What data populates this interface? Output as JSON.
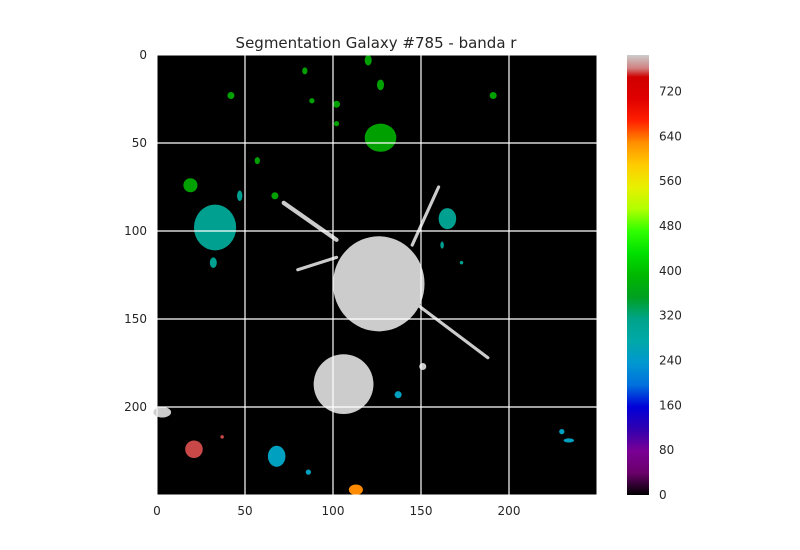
{
  "chart_data": {
    "type": "heatmap",
    "title": "Segmentation Galaxy #785 - banda r",
    "xlabel": "",
    "ylabel": "",
    "image_size": [
      250,
      250
    ],
    "xlim": [
      0,
      250
    ],
    "ylim": [
      250,
      0
    ],
    "xticks": [
      0,
      50,
      100,
      150,
      200
    ],
    "yticks": [
      0,
      50,
      100,
      150,
      200
    ],
    "grid": true,
    "colormap": "nipy_spectral",
    "colorbar": {
      "range": [
        0,
        785
      ],
      "ticks": [
        0,
        80,
        160,
        240,
        320,
        400,
        480,
        560,
        640,
        720
      ]
    },
    "background": "#000000",
    "grid_color": "#ffffff",
    "segments": [
      {
        "label": "central-galaxy",
        "cx": 126,
        "cy": 130,
        "rx": 26,
        "ry": 27,
        "color": "#cccccc"
      },
      {
        "label": "central-galaxy-lower",
        "cx": 106,
        "cy": 187,
        "rx": 17,
        "ry": 17,
        "color": "#cccccc"
      },
      {
        "label": "left-edge-object",
        "cx": 3,
        "cy": 203,
        "rx": 5,
        "ry": 3,
        "color": "#cccccc"
      },
      {
        "label": "object-top-green",
        "cx": 127,
        "cy": 47,
        "rx": 9,
        "ry": 8,
        "color": "#00a000"
      },
      {
        "label": "object-teal-left",
        "cx": 33,
        "cy": 98,
        "rx": 12,
        "ry": 13,
        "color": "#00a090"
      },
      {
        "label": "object-teal-right",
        "cx": 165,
        "cy": 93,
        "rx": 5,
        "ry": 6,
        "color": "#00a090"
      },
      {
        "label": "object-red",
        "cx": 21,
        "cy": 224,
        "rx": 5,
        "ry": 5,
        "color": "#c84848"
      },
      {
        "label": "object-cyan",
        "cx": 68,
        "cy": 228,
        "rx": 5,
        "ry": 6,
        "color": "#00a0c0"
      },
      {
        "label": "object-orange",
        "cx": 113,
        "cy": 247,
        "rx": 4,
        "ry": 3,
        "color": "#ff8c00"
      },
      {
        "label": "object-small-1",
        "cx": 120,
        "cy": 3,
        "rx": 2,
        "ry": 3,
        "color": "#00a000"
      },
      {
        "label": "object-small-2",
        "cx": 84,
        "cy": 9,
        "rx": 1.5,
        "ry": 2,
        "color": "#00a000"
      },
      {
        "label": "object-small-3",
        "cx": 127,
        "cy": 17,
        "rx": 2,
        "ry": 3,
        "color": "#00a000"
      },
      {
        "label": "object-small-4",
        "cx": 42,
        "cy": 23,
        "rx": 2,
        "ry": 2,
        "color": "#00a000"
      },
      {
        "label": "object-small-5",
        "cx": 88,
        "cy": 26,
        "rx": 1.5,
        "ry": 1.5,
        "color": "#00a000"
      },
      {
        "label": "object-small-6",
        "cx": 102,
        "cy": 28,
        "rx": 2,
        "ry": 2,
        "color": "#00a000"
      },
      {
        "label": "object-small-7",
        "cx": 102,
        "cy": 39,
        "rx": 1.5,
        "ry": 1.5,
        "color": "#00a000"
      },
      {
        "label": "object-small-8",
        "cx": 191,
        "cy": 23,
        "rx": 2,
        "ry": 2,
        "color": "#00a000"
      },
      {
        "label": "object-small-9",
        "cx": 57,
        "cy": 60,
        "rx": 1.5,
        "ry": 2,
        "color": "#00a000"
      },
      {
        "label": "object-small-10",
        "cx": 19,
        "cy": 74,
        "rx": 4,
        "ry": 4,
        "color": "#00a000"
      },
      {
        "label": "object-small-11",
        "cx": 67,
        "cy": 80,
        "rx": 2,
        "ry": 2,
        "color": "#00a000"
      },
      {
        "label": "object-small-12",
        "cx": 47,
        "cy": 80,
        "rx": 1.5,
        "ry": 3,
        "color": "#00a090"
      },
      {
        "label": "object-small-13",
        "cx": 32,
        "cy": 118,
        "rx": 2,
        "ry": 3,
        "color": "#00a090"
      },
      {
        "label": "object-small-14",
        "cx": 162,
        "cy": 108,
        "rx": 1,
        "ry": 2,
        "color": "#00a090"
      },
      {
        "label": "object-small-15",
        "cx": 173,
        "cy": 118,
        "rx": 1,
        "ry": 1,
        "color": "#00a090"
      },
      {
        "label": "object-small-16",
        "cx": 137,
        "cy": 193,
        "rx": 2,
        "ry": 2,
        "color": "#00a0c0"
      },
      {
        "label": "object-small-17",
        "cx": 86,
        "cy": 237,
        "rx": 1.5,
        "ry": 1.5,
        "color": "#00a0c0"
      },
      {
        "label": "object-small-18",
        "cx": 230,
        "cy": 214,
        "rx": 1.5,
        "ry": 1.5,
        "color": "#00a0c0"
      },
      {
        "label": "object-small-19",
        "cx": 234,
        "cy": 219,
        "rx": 3,
        "ry": 1.2,
        "color": "#00a0c0"
      },
      {
        "label": "object-small-20",
        "cx": 37,
        "cy": 217,
        "rx": 1,
        "ry": 1,
        "color": "#c84848"
      },
      {
        "label": "object-small-21",
        "cx": 151,
        "cy": 177,
        "rx": 2,
        "ry": 2,
        "color": "#cccccc"
      }
    ],
    "streaks": [
      {
        "label": "streak-upper-left",
        "x1": 72,
        "y1": 84,
        "x2": 102,
        "y2": 105,
        "width": 4,
        "color": "#cccccc"
      },
      {
        "label": "streak-upper-right",
        "x1": 145,
        "y1": 108,
        "x2": 160,
        "y2": 75,
        "width": 3,
        "color": "#cccccc"
      },
      {
        "label": "streak-lower-right",
        "x1": 148,
        "y1": 142,
        "x2": 188,
        "y2": 172,
        "width": 3,
        "color": "#cccccc"
      },
      {
        "label": "streak-left",
        "x1": 80,
        "y1": 122,
        "x2": 102,
        "y2": 115,
        "width": 3,
        "color": "#cccccc"
      }
    ]
  }
}
